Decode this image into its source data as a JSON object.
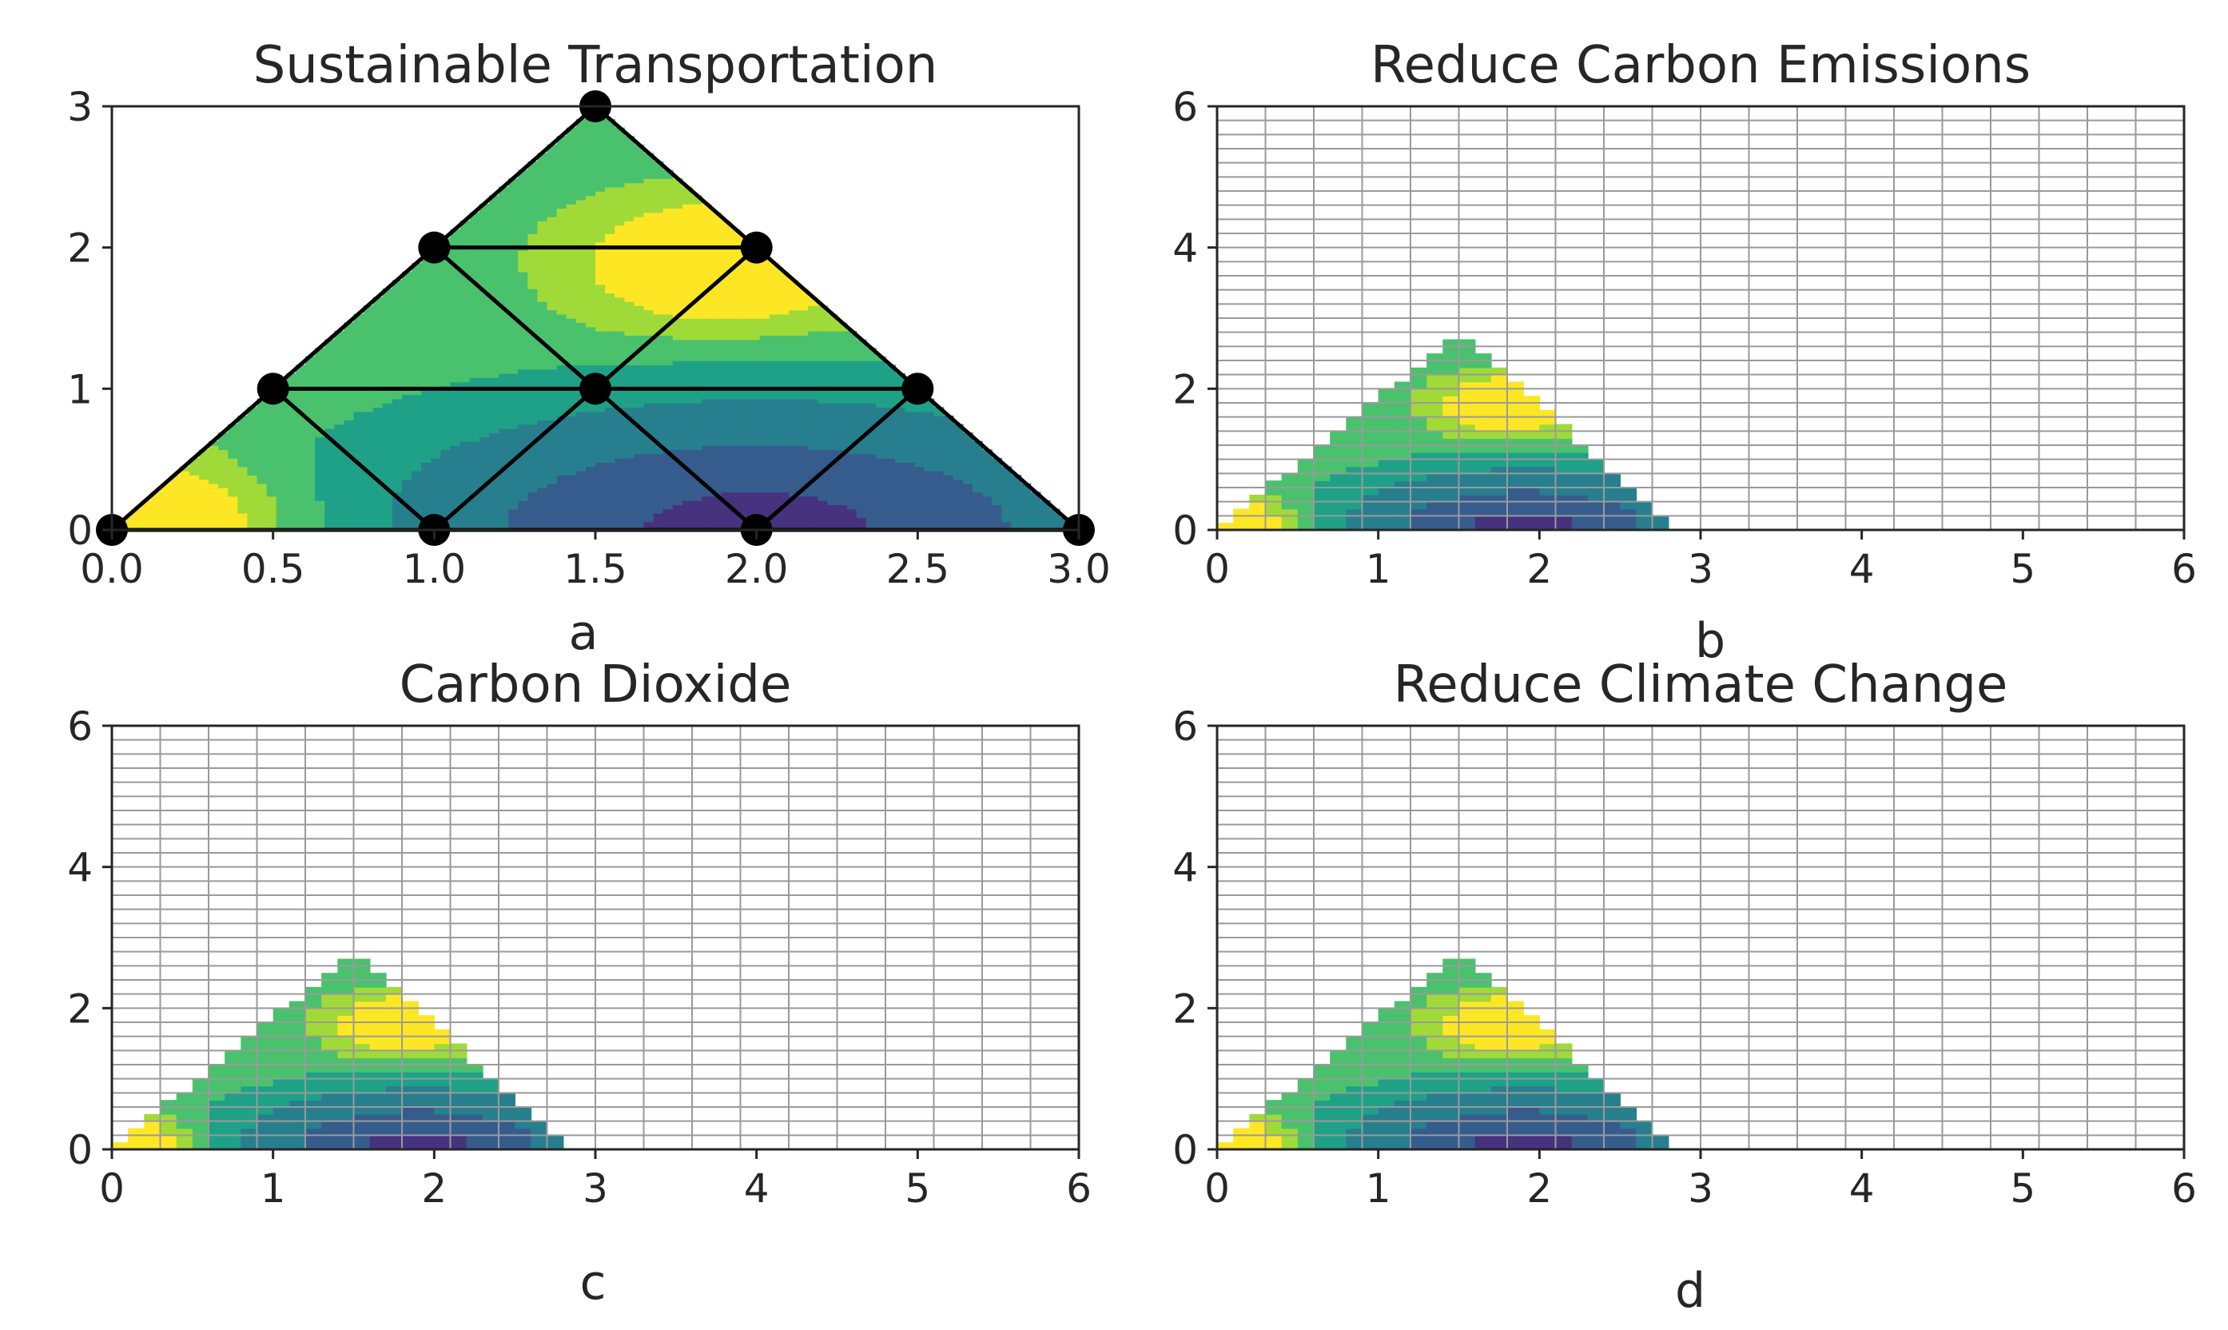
{
  "colors": {
    "viridis": [
      "#440154",
      "#46327e",
      "#365c8d",
      "#277f8e",
      "#1fa187",
      "#4ac16d",
      "#a0da39",
      "#fde725"
    ],
    "mesh_line": "#000000",
    "grid_line": "#9a9a9a",
    "axes_frame": "#262626"
  },
  "chart_data": [
    {
      "panel": "a",
      "title": "Sustainable Transportation",
      "type": "heatmap",
      "description_kind": "triangular finite-element mesh with filled contour",
      "xlabel": "",
      "ylabel": "",
      "xlim": [
        0,
        3
      ],
      "ylim": [
        0,
        3
      ],
      "xticks": [
        "0.0",
        "0.5",
        "1.0",
        "1.5",
        "2.0",
        "2.5",
        "3.0"
      ],
      "yticks": [
        "0",
        "1",
        "2",
        "3"
      ],
      "grid": false,
      "nodes": [
        [
          0,
          0
        ],
        [
          1,
          0
        ],
        [
          2,
          0
        ],
        [
          3,
          0
        ],
        [
          0.5,
          1
        ],
        [
          1.5,
          1
        ],
        [
          2.5,
          1
        ],
        [
          1,
          2
        ],
        [
          2,
          2
        ],
        [
          1.5,
          3
        ]
      ],
      "mesh_edges": [
        [
          0,
          3
        ],
        [
          4,
          6
        ],
        [
          7,
          8
        ],
        [
          0,
          9
        ],
        [
          3,
          9
        ],
        [
          4,
          1
        ],
        [
          1,
          5
        ],
        [
          5,
          2
        ],
        [
          2,
          6
        ],
        [
          7,
          5
        ],
        [
          5,
          8
        ]
      ],
      "peak_low": [
        2.0,
        0.0
      ],
      "peak_high_points": [
        [
          0.1,
          0.05
        ],
        [
          1.9,
          1.9
        ]
      ]
    },
    {
      "panel": "b",
      "title": "Reduce Carbon Emissions",
      "type": "heatmap",
      "xlabel": "",
      "ylabel": "",
      "xlim": [
        0,
        6
      ],
      "ylim": [
        0,
        6
      ],
      "xticks": [
        "0",
        "1",
        "2",
        "3",
        "4",
        "5",
        "6"
      ],
      "yticks": [
        "0",
        "2",
        "4",
        "6"
      ],
      "grid": true,
      "grid_step": [
        0.3,
        0.2
      ],
      "region_apex": [
        1.5,
        2.8
      ],
      "region_base": [
        0,
        2.85
      ],
      "peak_low": [
        2.0,
        0.0
      ]
    },
    {
      "panel": "c",
      "title": "Carbon Dioxide",
      "type": "heatmap",
      "xlabel": "",
      "ylabel": "",
      "xlim": [
        0,
        6
      ],
      "ylim": [
        0,
        6
      ],
      "xticks": [
        "0",
        "1",
        "2",
        "3",
        "4",
        "5",
        "6"
      ],
      "yticks": [
        "0",
        "2",
        "4",
        "6"
      ],
      "grid": true,
      "grid_step": [
        0.3,
        0.2
      ],
      "region_apex": [
        1.5,
        2.8
      ],
      "region_base": [
        0,
        2.85
      ],
      "peak_low": [
        2.0,
        0.0
      ]
    },
    {
      "panel": "d",
      "title": "Reduce Climate Change",
      "type": "heatmap",
      "xlabel": "",
      "ylabel": "",
      "xlim": [
        0,
        6
      ],
      "ylim": [
        0,
        6
      ],
      "xticks": [
        "0",
        "1",
        "2",
        "3",
        "4",
        "5",
        "6"
      ],
      "yticks": [
        "0",
        "2",
        "4",
        "6"
      ],
      "grid": true,
      "grid_step": [
        0.3,
        0.2
      ],
      "region_apex": [
        1.5,
        2.8
      ],
      "region_base": [
        0,
        2.85
      ],
      "peak_low": [
        2.0,
        0.0
      ]
    }
  ]
}
